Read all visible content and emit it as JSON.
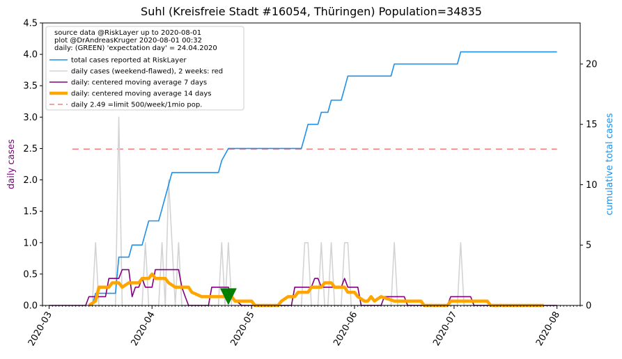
{
  "chart_data": {
    "type": "line",
    "title": "Suhl (Kreisfreie Stadt #16054, Thüringen) Population=34835",
    "ylabel_left": "daily cases",
    "ylabel_right": "cumulative total cases",
    "ylim_left": [
      0,
      4.5
    ],
    "ylim_right": [
      0,
      23.4
    ],
    "yticks_left": [
      "0.0",
      "0.5",
      "1.0",
      "1.5",
      "2.0",
      "2.5",
      "3.0",
      "3.5",
      "4.0",
      "4.5"
    ],
    "yticks_right": [
      "0",
      "5",
      "10",
      "15",
      "20"
    ],
    "xlim": [
      "2020-02-28",
      "2020-08-08"
    ],
    "xticks": [
      "2020-03",
      "2020-04",
      "2020-05",
      "2020-06",
      "2020-07",
      "2020-08"
    ],
    "grid": false,
    "legend_position": "top-left",
    "legend_text": [
      "source data @RiskLayer up to 2020-08-01",
      "plot @DrAndreasKruger 2020-08-01 00:32",
      "daily: (GREEN) 'expectation day' = 24.04.2020"
    ],
    "legend": [
      {
        "label": "total cases reported at RiskLayer",
        "color": "#1f8fe8",
        "style": "solid"
      },
      {
        "label": "daily cases (weekend-flawed), 2 weeks: red",
        "color": "#d3d3d3",
        "style": "solid"
      },
      {
        "label": "daily: centered moving average 7 days",
        "color": "#800080",
        "style": "solid"
      },
      {
        "label": "daily: centered moving average 14 days",
        "color": "#ffa500",
        "style": "thick"
      },
      {
        "label": "daily 2.49 =limit 500/week/1mio pop.",
        "color": "#f08080",
        "style": "dashed"
      }
    ],
    "limit_line": {
      "value": 2.49,
      "x_start": "2020-03-08",
      "x_end": "2020-08-01"
    },
    "expectation_day": {
      "x": "2020-04-24",
      "y": 0.14,
      "color": "#008000"
    },
    "series": [
      {
        "name": "total cases reported at RiskLayer",
        "axis": "right",
        "color": "#1f8fe8",
        "points": [
          [
            "2020-03-14",
            0
          ],
          [
            "2020-03-15",
            1
          ],
          [
            "2020-03-21",
            1
          ],
          [
            "2020-03-22",
            4
          ],
          [
            "2020-03-25",
            4
          ],
          [
            "2020-03-26",
            5
          ],
          [
            "2020-03-29",
            5
          ],
          [
            "2020-03-30",
            6
          ],
          [
            "2020-03-31",
            7
          ],
          [
            "2020-04-03",
            7
          ],
          [
            "2020-04-04",
            8
          ],
          [
            "2020-04-05",
            9
          ],
          [
            "2020-04-06",
            10
          ],
          [
            "2020-04-07",
            11
          ],
          [
            "2020-04-21",
            11
          ],
          [
            "2020-04-22",
            12
          ],
          [
            "2020-04-24",
            13
          ],
          [
            "2020-05-16",
            13
          ],
          [
            "2020-05-17",
            14
          ],
          [
            "2020-05-18",
            15
          ],
          [
            "2020-05-21",
            15
          ],
          [
            "2020-05-22",
            16
          ],
          [
            "2020-05-24",
            16
          ],
          [
            "2020-05-25",
            17
          ],
          [
            "2020-05-28",
            17
          ],
          [
            "2020-05-29",
            18
          ],
          [
            "2020-05-30",
            19
          ],
          [
            "2020-06-12",
            19
          ],
          [
            "2020-06-13",
            20
          ],
          [
            "2020-07-02",
            20
          ],
          [
            "2020-07-03",
            21
          ],
          [
            "2020-08-01",
            21
          ]
        ]
      },
      {
        "name": "daily cases (weekend-flawed), 2 weeks: red",
        "axis": "left",
        "color": "#d3d3d3",
        "points": [
          [
            "2020-03-14",
            0
          ],
          [
            "2020-03-15",
            1
          ],
          [
            "2020-03-16",
            0
          ],
          [
            "2020-03-21",
            0
          ],
          [
            "2020-03-22",
            3
          ],
          [
            "2020-03-23",
            0
          ],
          [
            "2020-03-29",
            0
          ],
          [
            "2020-03-30",
            1
          ],
          [
            "2020-03-31",
            0
          ],
          [
            "2020-04-03",
            0
          ],
          [
            "2020-04-04",
            1
          ],
          [
            "2020-04-05",
            0
          ],
          [
            "2020-04-06",
            2
          ],
          [
            "2020-04-07",
            1
          ],
          [
            "2020-04-08",
            0
          ],
          [
            "2020-04-09",
            1
          ],
          [
            "2020-04-10",
            0
          ],
          [
            "2020-04-21",
            0
          ],
          [
            "2020-04-22",
            1
          ],
          [
            "2020-04-23",
            0
          ],
          [
            "2020-04-24",
            1
          ],
          [
            "2020-04-25",
            0
          ],
          [
            "2020-05-16",
            0
          ],
          [
            "2020-05-17",
            1
          ],
          [
            "2020-05-18",
            1
          ],
          [
            "2020-05-19",
            0
          ],
          [
            "2020-05-21",
            0
          ],
          [
            "2020-05-22",
            1
          ],
          [
            "2020-05-23",
            0
          ],
          [
            "2020-05-24",
            0
          ],
          [
            "2020-05-25",
            1
          ],
          [
            "2020-05-26",
            0
          ],
          [
            "2020-05-28",
            0
          ],
          [
            "2020-05-29",
            1
          ],
          [
            "2020-05-30",
            1
          ],
          [
            "2020-05-31",
            0
          ],
          [
            "2020-06-12",
            0
          ],
          [
            "2020-06-13",
            1
          ],
          [
            "2020-06-14",
            0
          ],
          [
            "2020-07-02",
            0
          ],
          [
            "2020-07-03",
            1
          ],
          [
            "2020-07-04",
            0
          ],
          [
            "2020-08-01",
            0
          ]
        ]
      },
      {
        "name": "daily: centered moving average 7 days",
        "axis": "left",
        "color": "#800080",
        "points": [
          [
            "2020-03-01",
            0
          ],
          [
            "2020-03-12",
            0
          ],
          [
            "2020-03-13",
            0.14
          ],
          [
            "2020-03-18",
            0.14
          ],
          [
            "2020-03-19",
            0.43
          ],
          [
            "2020-03-22",
            0.43
          ],
          [
            "2020-03-23",
            0.57
          ],
          [
            "2020-03-25",
            0.57
          ],
          [
            "2020-03-26",
            0.14
          ],
          [
            "2020-03-27",
            0.29
          ],
          [
            "2020-03-28",
            0.29
          ],
          [
            "2020-03-29",
            0.43
          ],
          [
            "2020-03-30",
            0.29
          ],
          [
            "2020-04-01",
            0.29
          ],
          [
            "2020-04-02",
            0.57
          ],
          [
            "2020-04-09",
            0.57
          ],
          [
            "2020-04-10",
            0.29
          ],
          [
            "2020-04-11",
            0.14
          ],
          [
            "2020-04-12",
            0
          ],
          [
            "2020-04-18",
            0
          ],
          [
            "2020-04-19",
            0.29
          ],
          [
            "2020-04-24",
            0.29
          ],
          [
            "2020-04-25",
            0.14
          ],
          [
            "2020-04-28",
            0
          ],
          [
            "2020-05-13",
            0
          ],
          [
            "2020-05-14",
            0.29
          ],
          [
            "2020-05-19",
            0.29
          ],
          [
            "2020-05-20",
            0.43
          ],
          [
            "2020-05-21",
            0.43
          ],
          [
            "2020-05-22",
            0.29
          ],
          [
            "2020-05-25",
            0.29
          ],
          [
            "2020-05-26",
            0.29
          ],
          [
            "2020-05-27",
            0.29
          ],
          [
            "2020-05-28",
            0.29
          ],
          [
            "2020-05-29",
            0.43
          ],
          [
            "2020-05-30",
            0.29
          ],
          [
            "2020-06-02",
            0.29
          ],
          [
            "2020-06-03",
            0
          ],
          [
            "2020-06-09",
            0
          ],
          [
            "2020-06-10",
            0.14
          ],
          [
            "2020-06-16",
            0.14
          ],
          [
            "2020-06-17",
            0
          ],
          [
            "2020-06-29",
            0
          ],
          [
            "2020-06-30",
            0.14
          ],
          [
            "2020-07-06",
            0.14
          ],
          [
            "2020-07-07",
            0
          ],
          [
            "2020-08-01",
            0
          ]
        ]
      },
      {
        "name": "daily: centered moving average 14 days",
        "axis": "left",
        "color": "#ffa500",
        "points": [
          [
            "2020-03-13",
            0
          ],
          [
            "2020-03-15",
            0.07
          ],
          [
            "2020-03-16",
            0.29
          ],
          [
            "2020-03-19",
            0.29
          ],
          [
            "2020-03-20",
            0.36
          ],
          [
            "2020-03-22",
            0.36
          ],
          [
            "2020-03-23",
            0.29
          ],
          [
            "2020-03-25",
            0.36
          ],
          [
            "2020-03-28",
            0.36
          ],
          [
            "2020-03-29",
            0.43
          ],
          [
            "2020-03-31",
            0.43
          ],
          [
            "2020-04-01",
            0.5
          ],
          [
            "2020-04-02",
            0.43
          ],
          [
            "2020-04-05",
            0.43
          ],
          [
            "2020-04-06",
            0.36
          ],
          [
            "2020-04-08",
            0.29
          ],
          [
            "2020-04-12",
            0.29
          ],
          [
            "2020-04-13",
            0.21
          ],
          [
            "2020-04-16",
            0.14
          ],
          [
            "2020-04-25",
            0.14
          ],
          [
            "2020-04-26",
            0.07
          ],
          [
            "2020-05-01",
            0.07
          ],
          [
            "2020-05-02",
            0
          ],
          [
            "2020-05-09",
            0
          ],
          [
            "2020-05-10",
            0.07
          ],
          [
            "2020-05-12",
            0.14
          ],
          [
            "2020-05-14",
            0.14
          ],
          [
            "2020-05-15",
            0.21
          ],
          [
            "2020-05-18",
            0.21
          ],
          [
            "2020-05-19",
            0.29
          ],
          [
            "2020-05-22",
            0.29
          ],
          [
            "2020-05-23",
            0.36
          ],
          [
            "2020-05-25",
            0.36
          ],
          [
            "2020-05-26",
            0.29
          ],
          [
            "2020-05-29",
            0.29
          ],
          [
            "2020-05-30",
            0.21
          ],
          [
            "2020-06-01",
            0.21
          ],
          [
            "2020-06-02",
            0.14
          ],
          [
            "2020-06-04",
            0.07
          ],
          [
            "2020-06-05",
            0.07
          ],
          [
            "2020-06-06",
            0.14
          ],
          [
            "2020-06-07",
            0.07
          ],
          [
            "2020-06-09",
            0.14
          ],
          [
            "2020-06-13",
            0.07
          ],
          [
            "2020-06-21",
            0.07
          ],
          [
            "2020-06-22",
            0
          ],
          [
            "2020-06-29",
            0
          ],
          [
            "2020-06-30",
            0.07
          ],
          [
            "2020-07-11",
            0.07
          ],
          [
            "2020-07-12",
            0
          ],
          [
            "2020-07-28",
            0
          ]
        ]
      }
    ]
  }
}
